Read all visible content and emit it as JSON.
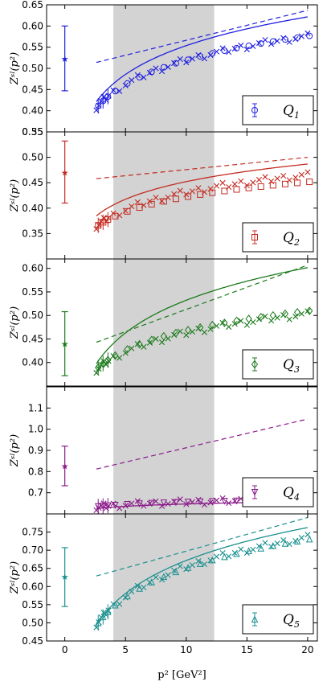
{
  "chart_data": {
    "type": "scatter",
    "xlabel": "p² [GeV²]",
    "ylabel": "Z^{SI}(p²)",
    "xlim": [
      -1.5,
      20.8
    ],
    "x_ticks": [
      "0",
      "5",
      "10",
      "15",
      "20"
    ],
    "shaded_band_x": [
      4.0,
      12.3
    ],
    "grid": false,
    "legend_placement": "lower-right",
    "panels": [
      {
        "legend": "Q_1",
        "legend_sub": "1",
        "color": "#1f1fe0",
        "marker": "circle",
        "ylim": [
          0.35,
          0.65
        ],
        "y_ticks": [
          "0.35",
          "0.40",
          "0.45",
          "0.50",
          "0.55",
          "0.60",
          "0.65"
        ],
        "star": {
          "x": 0,
          "y": 0.523,
          "lo": 0.447,
          "hi": 0.6
        },
        "dashed_line": {
          "x": [
            2.6,
            20
          ],
          "y": [
            0.514,
            0.637
          ]
        },
        "solid_curve": {
          "a": 0.328,
          "b": 0.098
        },
        "crosses": {
          "a": 0.33,
          "b": 0.082
        },
        "open_markers": {
          "a": 0.334,
          "b": 0.081
        }
      },
      {
        "legend": "Q_2",
        "legend_sub": "2",
        "color": "#c42b22",
        "marker": "square",
        "ylim": [
          0.3,
          0.55
        ],
        "y_ticks": [
          "0.35",
          "0.40",
          "0.45",
          "0.50",
          "0.55"
        ],
        "star": {
          "x": 0,
          "y": 0.47,
          "lo": 0.41,
          "hi": 0.532
        },
        "dashed_line": {
          "x": [
            2.6,
            20
          ],
          "y": [
            0.458,
            0.5
          ]
        },
        "solid_curve": {
          "a": 0.337,
          "b": 0.05
        },
        "crosses": {
          "a": 0.318,
          "b": 0.049
        },
        "open_markers": {
          "a": 0.326,
          "b": 0.042
        }
      },
      {
        "legend": "Q_3",
        "legend_sub": "3",
        "color": "#1a7a1a",
        "marker": "diamond",
        "ylim": [
          0.35,
          0.62
        ],
        "y_ticks": [
          "0.40",
          "0.45",
          "0.50",
          "0.55",
          "0.60"
        ],
        "star": {
          "x": 0,
          "y": 0.44,
          "lo": 0.372,
          "hi": 0.508
        },
        "dashed_line": {
          "x": [
            2.6,
            20
          ],
          "y": [
            0.443,
            0.607
          ]
        },
        "solid_curve": {
          "a": 0.302,
          "b": 0.1
        },
        "crosses": {
          "a": 0.329,
          "b": 0.058
        },
        "open_markers": {
          "a": 0.333,
          "b": 0.059
        }
      },
      {
        "legend": "Q_4",
        "legend_sub": "4",
        "color": "#8a1a8a",
        "marker": "triangle-down",
        "ylim": [
          0.6,
          1.2
        ],
        "y_ticks": [
          "0.7",
          "0.8",
          "0.9",
          "1.0",
          "1.1"
        ],
        "star": {
          "x": 0,
          "y": 0.826,
          "lo": 0.733,
          "hi": 0.92
        },
        "dashed_line": {
          "x": [
            2.6,
            20
          ],
          "y": [
            0.812,
            1.048
          ]
        },
        "solid_curve": {
          "a": 0.61,
          "b": 0.016
        },
        "crosses": {
          "a": 0.615,
          "b": 0.0175
        },
        "open_markers": {
          "a": 0.62,
          "b": 0.0158
        }
      },
      {
        "legend": "Q_5",
        "legend_sub": "5",
        "color": "#1a8f8f",
        "marker": "triangle-up",
        "ylim": [
          0.45,
          0.8
        ],
        "y_ticks": [
          "0.45",
          "0.50",
          "0.55",
          "0.60",
          "0.65",
          "0.70",
          "0.75"
        ],
        "star": {
          "x": 0,
          "y": 0.627,
          "lo": 0.545,
          "hi": 0.707
        },
        "dashed_line": {
          "x": [
            2.6,
            20
          ],
          "y": [
            0.629,
            0.79
          ]
        },
        "solid_curve": {
          "a": 0.37,
          "b": 0.131
        },
        "crosses": {
          "a": 0.384,
          "b": 0.117
        },
        "open_markers": {
          "a": 0.392,
          "b": 0.113
        }
      }
    ],
    "sample_x": [
      2.6,
      2.8,
      3.0,
      3.2,
      3.4,
      3.6,
      4.0,
      4.5,
      5.0,
      5.5,
      6.0,
      6.5,
      7.0,
      7.5,
      8.0,
      8.5,
      9.0,
      9.5,
      10.0,
      10.5,
      11.0,
      11.5,
      12.0,
      12.5,
      13.0,
      13.5,
      14.0,
      14.5,
      15.0,
      15.5,
      16.0,
      16.5,
      17.0,
      17.5,
      18.0,
      18.5,
      19.0,
      19.5,
      20.0
    ]
  }
}
